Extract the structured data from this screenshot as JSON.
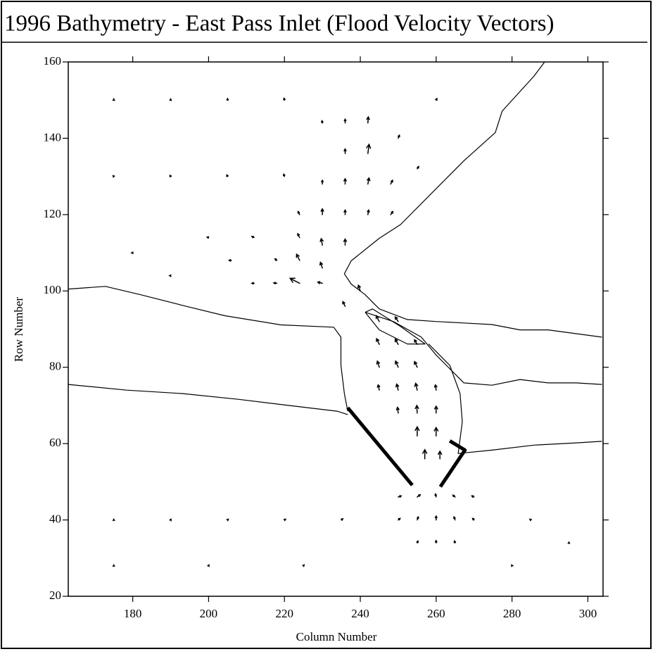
{
  "chart_data": {
    "type": "quiver",
    "title": "1996 Bathymetry - East Pass Inlet (Flood Velocity Vectors)",
    "x_label": "Column Number",
    "y_label": "Row Number",
    "xlim": [
      163,
      304
    ],
    "ylim": [
      20,
      160
    ],
    "xticks": [
      180,
      200,
      220,
      240,
      260,
      280,
      300
    ],
    "yticks": [
      20,
      40,
      60,
      80,
      100,
      120,
      140,
      160
    ],
    "color": "#000000",
    "contours": [
      {
        "x": [
          288.6,
          285.8,
          277.4,
          275.6,
          267.3,
          258.0,
          250.6,
          245.0,
          237.6,
          235.8,
          237.6,
          241.3,
          245.0,
          252.4,
          259.9,
          267.3,
          274.7,
          282.1,
          289.5,
          303.7
        ],
        "y": [
          160.0,
          156.3,
          147.1,
          141.5,
          134.1,
          124.8,
          117.4,
          113.8,
          107.9,
          104.5,
          101.8,
          99.0,
          95.3,
          92.5,
          92.0,
          91.6,
          91.2,
          89.8,
          89.8,
          87.9
        ]
      },
      {
        "x": [
          241.3,
          248.7,
          256.1,
          259.9,
          267.3,
          274.7,
          282.1,
          289.5,
          296.9,
          303.7
        ],
        "y": [
          94.4,
          92.0,
          87.9,
          83.3,
          75.9,
          75.3,
          76.8,
          75.9,
          75.9,
          75.5
        ]
      },
      {
        "x": [
          241.3,
          245.0,
          252.4,
          257.1,
          250.6,
          243.2,
          241.3
        ],
        "y": [
          94.4,
          89.8,
          86.1,
          86.1,
          90.7,
          95.3,
          94.4
        ]
      },
      {
        "x": [
          163.0,
          172.8,
          182.1,
          193.2,
          204.3,
          219.1,
          233.0,
          234.9,
          234.9,
          235.8,
          236.7
        ],
        "y": [
          100.5,
          101.2,
          99.0,
          96.2,
          93.5,
          91.1,
          90.5,
          87.9,
          80.5,
          73.1,
          68.5
        ]
      },
      {
        "x": [
          163.0,
          178.4,
          193.2,
          208.0,
          222.8,
          233.9,
          236.7
        ],
        "y": [
          75.5,
          74.0,
          73.1,
          71.6,
          69.8,
          68.5,
          67.6
        ]
      },
      {
        "x": [
          258.0,
          263.6,
          266.3,
          266.9,
          265.8,
          274.7,
          285.8,
          296.9,
          303.7
        ],
        "y": [
          86.1,
          80.5,
          73.1,
          65.7,
          57.4,
          58.3,
          59.6,
          60.2,
          60.6
        ]
      }
    ],
    "jetties": [
      {
        "x": [
          236.7,
          253.7
        ],
        "y": [
          69.4,
          49.1
        ]
      },
      {
        "x": [
          261.1,
          267.6,
          263.6
        ],
        "y": [
          48.7,
          58.3,
          60.7
        ]
      }
    ],
    "vectors": [
      {
        "x": 245,
        "y": 92,
        "u": -0.8,
        "v": 1.5
      },
      {
        "x": 250,
        "y": 92,
        "u": -0.8,
        "v": 1.2
      },
      {
        "x": 245,
        "y": 86,
        "u": -0.7,
        "v": 1.5
      },
      {
        "x": 250,
        "y": 86,
        "u": -0.8,
        "v": 1.4
      },
      {
        "x": 255,
        "y": 86,
        "u": -0.7,
        "v": 1.2
      },
      {
        "x": 245,
        "y": 80,
        "u": -0.5,
        "v": 1.6
      },
      {
        "x": 250,
        "y": 80,
        "u": -0.7,
        "v": 1.6
      },
      {
        "x": 255,
        "y": 80,
        "u": -0.7,
        "v": 1.5
      },
      {
        "x": 245,
        "y": 74,
        "u": -0.3,
        "v": 1.4
      },
      {
        "x": 250,
        "y": 74,
        "u": -0.4,
        "v": 1.6
      },
      {
        "x": 255,
        "y": 74,
        "u": -0.4,
        "v": 1.8
      },
      {
        "x": 260,
        "y": 74,
        "u": -0.2,
        "v": 1.4
      },
      {
        "x": 250,
        "y": 68,
        "u": -0.2,
        "v": 1.5
      },
      {
        "x": 255,
        "y": 68,
        "u": -0.1,
        "v": 2
      },
      {
        "x": 260,
        "y": 68,
        "u": 0,
        "v": 1.8
      },
      {
        "x": 255,
        "y": 62,
        "u": 0,
        "v": 2.4
      },
      {
        "x": 260,
        "y": 62,
        "u": 0,
        "v": 2.2
      },
      {
        "x": 257,
        "y": 56,
        "u": 0,
        "v": 2.4
      },
      {
        "x": 261,
        "y": 56,
        "u": 0,
        "v": 2
      },
      {
        "x": 250,
        "y": 46,
        "u": 0.8,
        "v": 0.3
      },
      {
        "x": 255,
        "y": 46,
        "u": 0.8,
        "v": 0.6
      },
      {
        "x": 260,
        "y": 46,
        "u": -0.2,
        "v": 0.8
      },
      {
        "x": 265,
        "y": 46,
        "u": -0.6,
        "v": 0.5
      },
      {
        "x": 270,
        "y": 46,
        "u": -0.6,
        "v": 0.3
      },
      {
        "x": 255,
        "y": 40,
        "u": 0.3,
        "v": 0.8
      },
      {
        "x": 260,
        "y": 40,
        "u": 0,
        "v": 1
      },
      {
        "x": 265,
        "y": 40,
        "u": -0.3,
        "v": 0.8
      },
      {
        "x": 250,
        "y": 40,
        "u": 0.5,
        "v": 0.4
      },
      {
        "x": 270,
        "y": 40,
        "u": -0.4,
        "v": 0.4
      },
      {
        "x": 260,
        "y": 34,
        "u": 0,
        "v": 0.6
      },
      {
        "x": 255,
        "y": 34,
        "u": 0.2,
        "v": 0.5
      },
      {
        "x": 265,
        "y": 34,
        "u": -0.2,
        "v": 0.5
      },
      {
        "x": 240,
        "y": 100,
        "u": -0.5,
        "v": 1.5
      },
      {
        "x": 236,
        "y": 96,
        "u": -0.6,
        "v": 1.2
      },
      {
        "x": 230,
        "y": 102,
        "u": -1.2,
        "v": 0.3
      },
      {
        "x": 224,
        "y": 102,
        "u": -2.5,
        "v": 1.3
      },
      {
        "x": 218,
        "y": 102,
        "u": -0.8,
        "v": 0.1
      },
      {
        "x": 212,
        "y": 102,
        "u": -0.6,
        "v": 0
      },
      {
        "x": 230,
        "y": 106,
        "u": -0.5,
        "v": 1.5
      },
      {
        "x": 224,
        "y": 108,
        "u": -0.8,
        "v": 1.6
      },
      {
        "x": 218,
        "y": 108,
        "u": -0.5,
        "v": 0.4
      },
      {
        "x": 230,
        "y": 112,
        "u": -0.3,
        "v": 1.7
      },
      {
        "x": 236,
        "y": 112,
        "u": 0,
        "v": 1.6
      },
      {
        "x": 224,
        "y": 114,
        "u": -0.5,
        "v": 1
      },
      {
        "x": 230,
        "y": 120,
        "u": 0,
        "v": 1.5
      },
      {
        "x": 236,
        "y": 120,
        "u": 0,
        "v": 1.2
      },
      {
        "x": 242,
        "y": 120,
        "u": 0.2,
        "v": 1.2
      },
      {
        "x": 224,
        "y": 120,
        "u": -0.4,
        "v": 0.8
      },
      {
        "x": 236,
        "y": 128,
        "u": 0,
        "v": 1.4
      },
      {
        "x": 242,
        "y": 128,
        "u": 0.3,
        "v": 1.6
      },
      {
        "x": 230,
        "y": 128,
        "u": 0,
        "v": 1
      },
      {
        "x": 242,
        "y": 136,
        "u": 0.3,
        "v": 2.4
      },
      {
        "x": 236,
        "y": 136,
        "u": 0,
        "v": 1.2
      },
      {
        "x": 242,
        "y": 144,
        "u": 0.1,
        "v": 1.6
      },
      {
        "x": 236,
        "y": 144,
        "u": 0,
        "v": 1
      },
      {
        "x": 230,
        "y": 144,
        "u": -0.1,
        "v": 0.6
      },
      {
        "x": 248,
        "y": 128,
        "u": 0.5,
        "v": 1
      },
      {
        "x": 248,
        "y": 120,
        "u": 0.6,
        "v": 0.8
      },
      {
        "x": 212,
        "y": 114,
        "u": -0.6,
        "v": 0.3
      },
      {
        "x": 206,
        "y": 108,
        "u": -0.6,
        "v": 0
      },
      {
        "x": 200,
        "y": 114,
        "u": -0.4,
        "v": 0.1
      },
      {
        "x": 175,
        "y": 150,
        "u": 0,
        "v": 0.3
      },
      {
        "x": 190,
        "y": 150,
        "u": 0,
        "v": 0.3
      },
      {
        "x": 205,
        "y": 150,
        "u": 0,
        "v": 0.4
      },
      {
        "x": 220,
        "y": 150,
        "u": -0.1,
        "v": 0.5
      },
      {
        "x": 175,
        "y": 130,
        "u": -0.2,
        "v": 0.2
      },
      {
        "x": 190,
        "y": 130,
        "u": -0.2,
        "v": 0.3
      },
      {
        "x": 205,
        "y": 130,
        "u": -0.2,
        "v": 0.4
      },
      {
        "x": 220,
        "y": 130,
        "u": -0.2,
        "v": 0.6
      },
      {
        "x": 180,
        "y": 110,
        "u": -0.3,
        "v": 0
      },
      {
        "x": 190,
        "y": 104,
        "u": -0.3,
        "v": 0
      },
      {
        "x": 250,
        "y": 140,
        "u": 0.3,
        "v": 0.8
      },
      {
        "x": 255,
        "y": 132,
        "u": 0.4,
        "v": 0.6
      },
      {
        "x": 260,
        "y": 150,
        "u": 0.2,
        "v": 0.4
      },
      {
        "x": 175,
        "y": 40,
        "u": 0,
        "v": 0.2
      },
      {
        "x": 190,
        "y": 40,
        "u": 0.1,
        "v": 0.2
      },
      {
        "x": 205,
        "y": 40,
        "u": 0.2,
        "v": 0.2
      },
      {
        "x": 220,
        "y": 40,
        "u": 0.3,
        "v": 0.2
      },
      {
        "x": 235,
        "y": 40,
        "u": 0.4,
        "v": 0.3
      },
      {
        "x": 285,
        "y": 40,
        "u": -0.3,
        "v": 0.2
      },
      {
        "x": 175,
        "y": 28,
        "u": 0,
        "v": 0.2
      },
      {
        "x": 200,
        "y": 28,
        "u": 0.1,
        "v": 0.2
      },
      {
        "x": 225,
        "y": 28,
        "u": 0.2,
        "v": 0.2
      },
      {
        "x": 280,
        "y": 28,
        "u": -0.1,
        "v": 0.2
      },
      {
        "x": 295,
        "y": 34,
        "u": 0,
        "v": 0.2
      }
    ]
  }
}
